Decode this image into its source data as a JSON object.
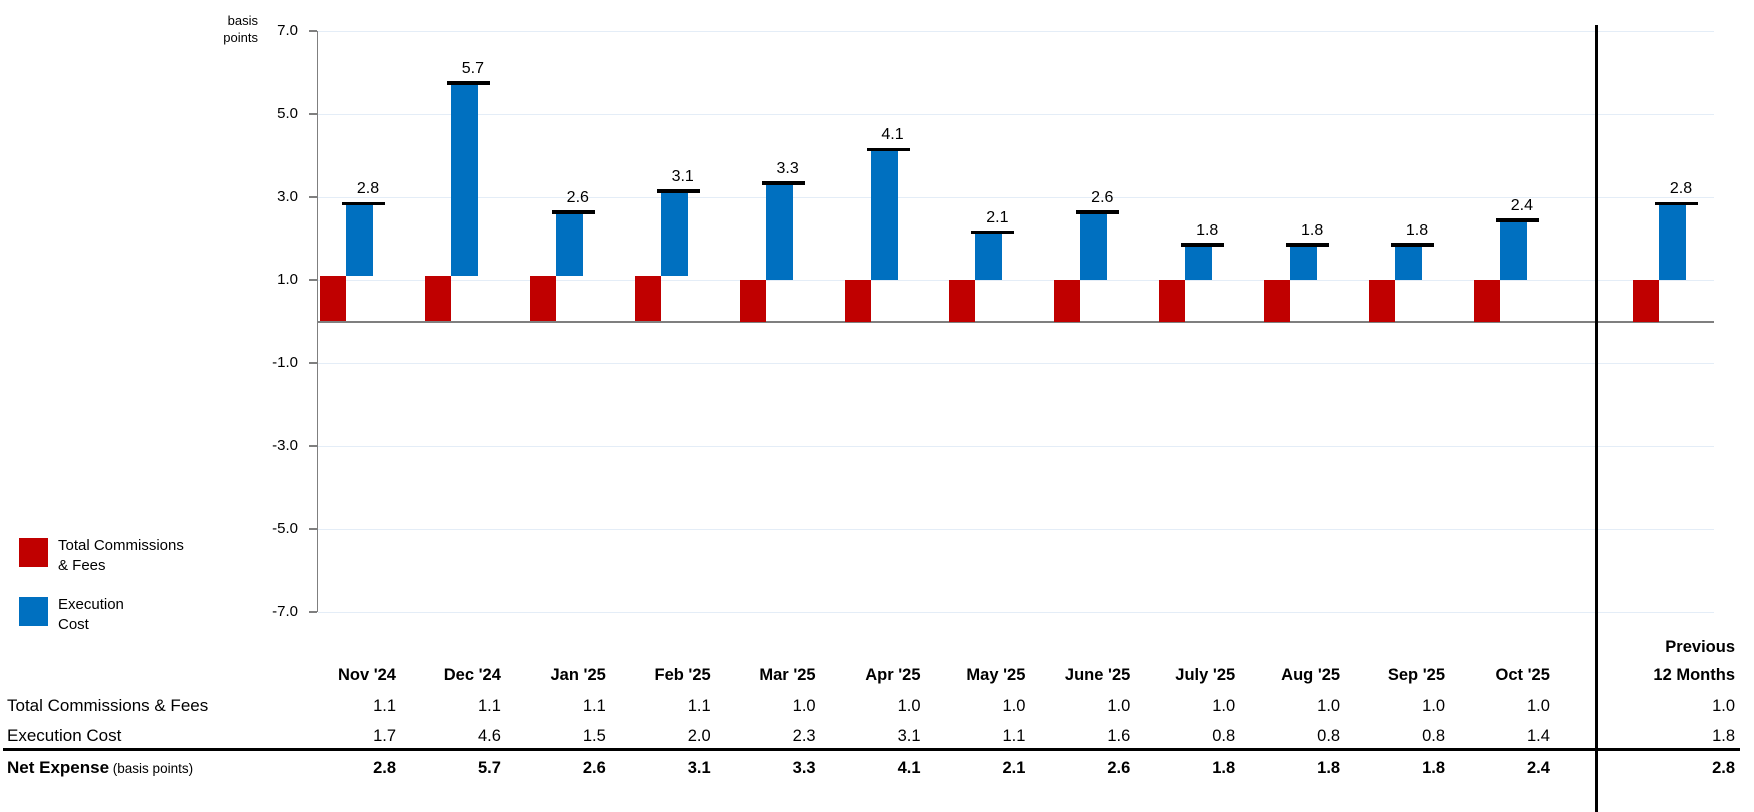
{
  "chart_data": {
    "type": "bar",
    "subtype": "stacked-column-with-total-cap",
    "title": "",
    "unit_label": [
      "basis",
      "points"
    ],
    "categories": [
      "Nov '24",
      "Dec '24",
      "Jan '25",
      "Feb '25",
      "Mar '25",
      "Apr '25",
      "May '25",
      "June '25",
      "July '25",
      "Aug '25",
      "Sep '25",
      "Oct '25",
      "Previous 12 Months"
    ],
    "series": [
      {
        "name": "Total Commissions & Fees",
        "color": "#C00000",
        "values": [
          1.1,
          1.1,
          1.1,
          1.1,
          1.0,
          1.0,
          1.0,
          1.0,
          1.0,
          1.0,
          1.0,
          1.0,
          1.0
        ]
      },
      {
        "name": "Execution Cost",
        "color": "#0070C0",
        "values": [
          1.7,
          4.6,
          1.5,
          2.0,
          2.3,
          3.1,
          1.1,
          1.6,
          0.8,
          0.8,
          0.8,
          1.4,
          1.8
        ]
      }
    ],
    "totals": {
      "name": "Net Expense (basis points)",
      "values": [
        2.8,
        5.7,
        2.6,
        3.1,
        3.3,
        4.1,
        2.1,
        2.6,
        1.8,
        1.8,
        1.8,
        2.4,
        2.8
      ]
    },
    "bar_labels": [
      "2.8",
      "5.7",
      "2.6",
      "3.1",
      "3.3",
      "4.1",
      "2.1",
      "2.6",
      "1.8",
      "1.8",
      "1.8",
      "2.4",
      "2.8"
    ],
    "y_axis": {
      "min": -7.0,
      "max": 7.0,
      "ticks": [
        7,
        5,
        3,
        1,
        -1,
        -3,
        -5,
        -7
      ],
      "tick_labels": [
        "7.0",
        "5.0",
        "3.0",
        "1.0",
        "-1.0",
        "-3.0",
        "-5.0",
        "-7.0"
      ]
    },
    "grid": true,
    "legend_position": "bottom-left",
    "separator": "vertical black line between Oct '25 and Previous 12 Months"
  },
  "colors": {
    "commissions_red": "#C00000",
    "execution_blue": "#0070C0",
    "axis_gray": "#7F7F7F",
    "gridline": "#E4EDF7",
    "cap_black": "#000000"
  },
  "legend": {
    "items": [
      {
        "lines": [
          "Total Commissions",
          "& Fees"
        ],
        "color": "#C00000"
      },
      {
        "lines": [
          "Execution",
          "Cost"
        ],
        "color": "#0070C0"
      }
    ]
  },
  "table": {
    "month_columns": [
      "Nov '24",
      "Dec '24",
      "Jan '25",
      "Feb '25",
      "Mar '25",
      "Apr '25",
      "May '25",
      "June '25",
      "July '25",
      "Aug '25",
      "Sep '25",
      "Oct '25"
    ],
    "prev_header": [
      "Previous",
      "12 Months"
    ],
    "rows": [
      {
        "label": "Total Commissions & Fees",
        "bold": false,
        "values": [
          "1.1",
          "1.1",
          "1.1",
          "1.1",
          "1.0",
          "1.0",
          "1.0",
          "1.0",
          "1.0",
          "1.0",
          "1.0",
          "1.0"
        ],
        "prev": "1.0"
      },
      {
        "label": "Execution Cost",
        "bold": false,
        "values": [
          "1.7",
          "4.6",
          "1.5",
          "2.0",
          "2.3",
          "3.1",
          "1.1",
          "1.6",
          "0.8",
          "0.8",
          "0.8",
          "1.4"
        ],
        "prev": "1.8"
      },
      {
        "label_bold": "Net Expense",
        "label_note": "(basis points)",
        "bold": true,
        "values": [
          "2.8",
          "5.7",
          "2.6",
          "3.1",
          "3.3",
          "4.1",
          "2.1",
          "2.6",
          "1.8",
          "1.8",
          "1.8",
          "2.4"
        ],
        "prev": "2.8"
      }
    ]
  }
}
